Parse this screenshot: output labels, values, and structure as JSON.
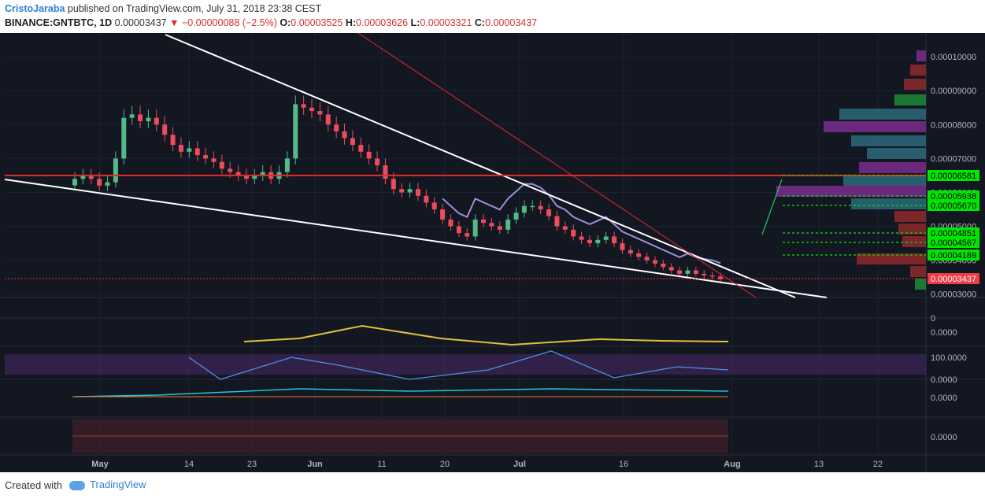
{
  "header": {
    "author": "CristoJaraba",
    "published": "published on TradingView.com, July 31, 2018 23:38 CEST",
    "symbol": "BINANCE:GNTBTC, 1D",
    "last": "0.00003437",
    "change": "▼ −0.00000088 (−2.5%)",
    "o_label": "O:",
    "o_value": "0.00003525",
    "h_label": "H:",
    "h_value": "0.00003626",
    "l_label": "L:",
    "l_value": "0.00003321",
    "c_label": "C:",
    "c_value": "0.00003437"
  },
  "footer": {
    "created": "Created with",
    "brand": "TradingView"
  },
  "colors": {
    "background": "#131722",
    "up": "#53b987",
    "down": "#eb4d5c",
    "trendline": "#ffffff",
    "resistance": "#e22b2b",
    "ma": "#9b8fd6",
    "label_green": "#00e600",
    "label_red": "#ef3b45"
  },
  "chart_data": {
    "type": "candlestick",
    "x_ticks": [
      "May",
      "14",
      "23",
      "Jun",
      "11",
      "20",
      "Jul",
      "16",
      "Aug",
      "13",
      "22"
    ],
    "y_ticks": [
      "0.00010000",
      "0.00009000",
      "0.00008000",
      "0.00007000",
      "0.00006000",
      "0.00005000",
      "0.00004000",
      "0.00003000"
    ],
    "price_labels": [
      {
        "value": "0.00006581",
        "color": "green"
      },
      {
        "value": "0.00005938",
        "color": "green"
      },
      {
        "value": "0.00005670",
        "color": "green"
      },
      {
        "value": "0.00004851",
        "color": "green"
      },
      {
        "value": "0.00004567",
        "color": "green"
      },
      {
        "value": "0.00004189",
        "color": "green"
      },
      {
        "value": "0.00003437",
        "color": "red"
      }
    ],
    "resistance_level": 6.5e-05,
    "candles_close": [
      6.4e-05,
      6.5e-05,
      6.4e-05,
      6.2e-05,
      6.3e-05,
      7e-05,
      8.2e-05,
      8.3e-05,
      8.1e-05,
      8.2e-05,
      8e-05,
      7.7e-05,
      7.4e-05,
      7.2e-05,
      7.3e-05,
      7.1e-05,
      7e-05,
      6.9e-05,
      6.7e-05,
      6.6e-05,
      6.5e-05,
      6.4e-05,
      6.5e-05,
      6.6e-05,
      6.4e-05,
      6.6e-05,
      7e-05,
      8.6e-05,
      8.5e-05,
      8.4e-05,
      8.3e-05,
      8e-05,
      7.8e-05,
      7.6e-05,
      7.4e-05,
      7.2e-05,
      7e-05,
      6.8e-05,
      6.4e-05,
      6.1e-05,
      6e-05,
      6.1e-05,
      5.9e-05,
      5.7e-05,
      5.5e-05,
      5.2e-05,
      5e-05,
      4.8e-05,
      4.7e-05,
      5.2e-05,
      5.1e-05,
      5e-05,
      4.9e-05,
      5.2e-05,
      5.4e-05,
      5.6e-05,
      5.6e-05,
      5.5e-05,
      5.3e-05,
      5e-05,
      4.9e-05,
      4.7e-05,
      4.6e-05,
      4.5e-05,
      4.6e-05,
      4.7e-05,
      4.5e-05,
      4.3e-05,
      4.2e-05,
      4.1e-05,
      4e-05,
      3.9e-05,
      3.8e-05,
      3.7e-05,
      3.6e-05,
      3.7e-05,
      3.6e-05,
      3.55e-05,
      3.52e-05,
      3.44e-05
    ],
    "oscillator_labels": [
      "0.0000",
      "100.0000",
      "0.0000",
      "0.0000",
      "0.0000",
      "0"
    ]
  }
}
